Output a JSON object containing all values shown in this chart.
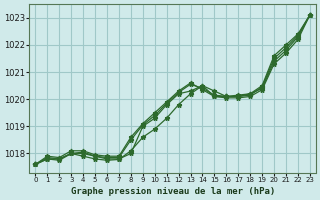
{
  "title": "Graphe pression niveau de la mer (hPa)",
  "bg_color": "#d0eaea",
  "grid_color": "#a0c8c8",
  "line_color": "#2d6a2d",
  "xlim": [
    0,
    23
  ],
  "ylim": [
    1017.3,
    1023.5
  ],
  "yticks": [
    1018,
    1019,
    1020,
    1021,
    1022,
    1023
  ],
  "xticks": [
    0,
    1,
    2,
    3,
    4,
    5,
    6,
    7,
    8,
    9,
    10,
    11,
    12,
    13,
    14,
    15,
    16,
    17,
    18,
    19,
    20,
    21,
    22,
    23
  ],
  "series": [
    [
      1017.6,
      1017.8,
      1017.8,
      1018.0,
      1018.0,
      1017.9,
      1017.8,
      1017.8,
      1018.0,
      1019.0,
      1019.3,
      1019.8,
      1020.2,
      1020.3,
      1020.5,
      1020.3,
      1020.1,
      1020.1,
      1020.2,
      1020.4,
      1021.4,
      1021.8,
      1022.3,
      1023.1
    ],
    [
      1017.6,
      1017.8,
      1017.75,
      1018.0,
      1017.9,
      1017.8,
      1017.75,
      1017.78,
      1018.1,
      1018.6,
      1018.9,
      1019.3,
      1019.8,
      1020.2,
      1020.5,
      1020.1,
      1020.05,
      1020.05,
      1020.1,
      1020.35,
      1021.3,
      1021.7,
      1022.2,
      1023.1
    ],
    [
      1017.6,
      1017.85,
      1017.8,
      1018.0,
      1018.05,
      1017.9,
      1017.85,
      1017.85,
      1018.5,
      1019.05,
      1019.4,
      1019.85,
      1020.25,
      1020.55,
      1020.4,
      1020.15,
      1020.1,
      1020.1,
      1020.15,
      1020.45,
      1021.5,
      1021.9,
      1022.35,
      1023.1
    ],
    [
      1017.6,
      1017.9,
      1017.85,
      1018.1,
      1018.1,
      1017.95,
      1017.9,
      1017.9,
      1018.6,
      1019.1,
      1019.5,
      1019.9,
      1020.3,
      1020.6,
      1020.35,
      1020.1,
      1020.1,
      1020.15,
      1020.2,
      1020.5,
      1021.6,
      1022.0,
      1022.4,
      1023.1
    ]
  ]
}
